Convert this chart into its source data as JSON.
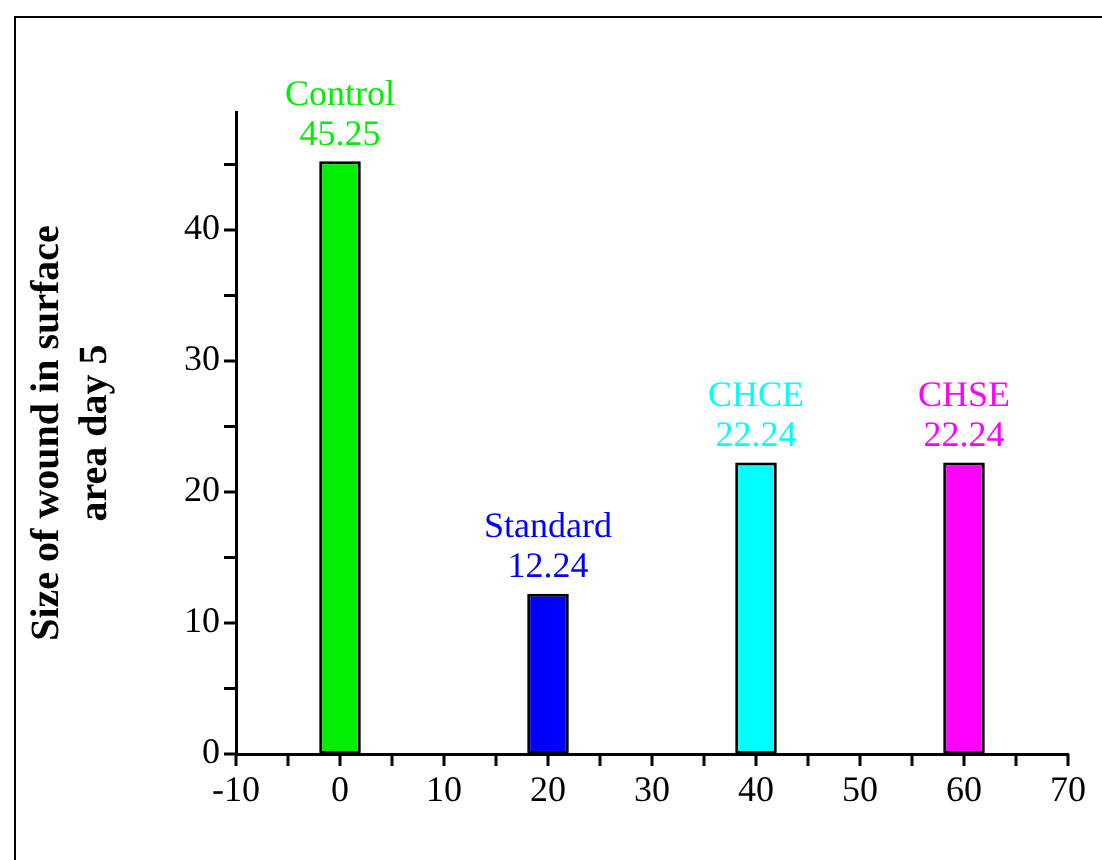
{
  "chart_data": {
    "type": "bar",
    "ylabel": "Size of wound in surface area day 5",
    "data_labels": true,
    "series": [
      {
        "name": "Control",
        "color": "#00ee00",
        "x": [
          0
        ],
        "values": [
          45.25
        ]
      },
      {
        "name": "Standard",
        "color": "#0000ff",
        "x": [
          20
        ],
        "values": [
          12.24
        ]
      },
      {
        "name": "CHCE",
        "color": "#00ffff",
        "x": [
          40
        ],
        "values": [
          22.24
        ]
      },
      {
        "name": "CHSE",
        "color": "#ff00ff",
        "x": [
          60
        ],
        "values": [
          22.24
        ]
      }
    ],
    "xlim": [
      -10,
      70
    ],
    "xticks": [
      -10,
      {
        "value": -5,
        "label": null
      },
      0,
      {
        "value": 5,
        "label": null
      },
      10,
      {
        "value": 15,
        "label": null
      },
      20,
      {
        "value": 25,
        "label": null
      },
      30,
      {
        "value": 35,
        "label": null
      },
      40,
      {
        "value": 45,
        "label": null
      },
      50,
      {
        "value": 55,
        "label": null
      },
      60,
      {
        "value": 65,
        "label": null
      },
      70
    ],
    "ylim": [
      0,
      49
    ],
    "yticks": [
      0,
      {
        "value": 5,
        "label": null
      },
      10,
      {
        "value": 15,
        "label": null
      },
      20,
      {
        "value": 25,
        "label": null
      },
      30,
      {
        "value": 35,
        "label": null
      },
      40,
      {
        "value": 45,
        "label": null
      }
    ]
  }
}
